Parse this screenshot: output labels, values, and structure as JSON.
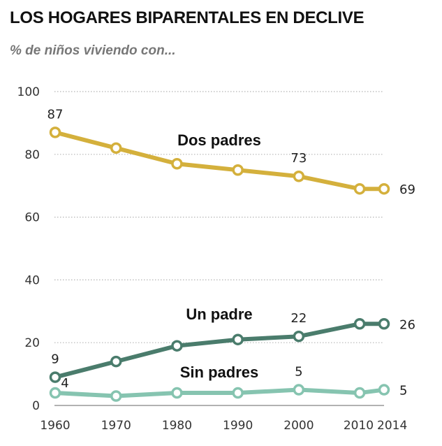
{
  "header": {
    "title": "LOS HOGARES BIPARENTALES EN DECLIVE",
    "subtitle": "% de niños viviendo con..."
  },
  "chart_data": {
    "type": "line",
    "title": "LOS HOGARES BIPARENTALES EN DECLIVE",
    "subtitle": "% de niños viviendo con...",
    "xlabel": "",
    "ylabel": "",
    "x": [
      1960,
      1970,
      1980,
      1990,
      2000,
      2010,
      2014
    ],
    "x_tick_labels": [
      "1960",
      "1970",
      "1980",
      "1990",
      "2000",
      "2010",
      "2014"
    ],
    "ylim": [
      0,
      100
    ],
    "y_ticks": [
      0,
      20,
      40,
      60,
      80,
      100
    ],
    "grid": true,
    "legend": "inline labels",
    "series": [
      {
        "name": "Dos padres",
        "color": "#d4b03c",
        "values": [
          87,
          82,
          77,
          75,
          73,
          69,
          69
        ],
        "data_labels": [
          {
            "index": 0,
            "text": "87",
            "position": "above"
          },
          {
            "index": 4,
            "text": "73",
            "position": "above"
          },
          {
            "index": 6,
            "text": "69",
            "position": "right"
          }
        ]
      },
      {
        "name": "Un padre",
        "color": "#4a7c6c",
        "values": [
          9,
          14,
          19,
          21,
          22,
          26,
          26
        ],
        "data_labels": [
          {
            "index": 0,
            "text": "9",
            "position": "above"
          },
          {
            "index": 4,
            "text": "22",
            "position": "above"
          },
          {
            "index": 6,
            "text": "26",
            "position": "right"
          }
        ]
      },
      {
        "name": "Sin padres",
        "color": "#86c4b0",
        "values": [
          4,
          3,
          4,
          4,
          5,
          4,
          5
        ],
        "data_labels": [
          {
            "index": 0,
            "text": "4",
            "position": "above-right"
          },
          {
            "index": 4,
            "text": "5",
            "position": "above"
          },
          {
            "index": 6,
            "text": "5",
            "position": "right"
          }
        ]
      }
    ]
  }
}
